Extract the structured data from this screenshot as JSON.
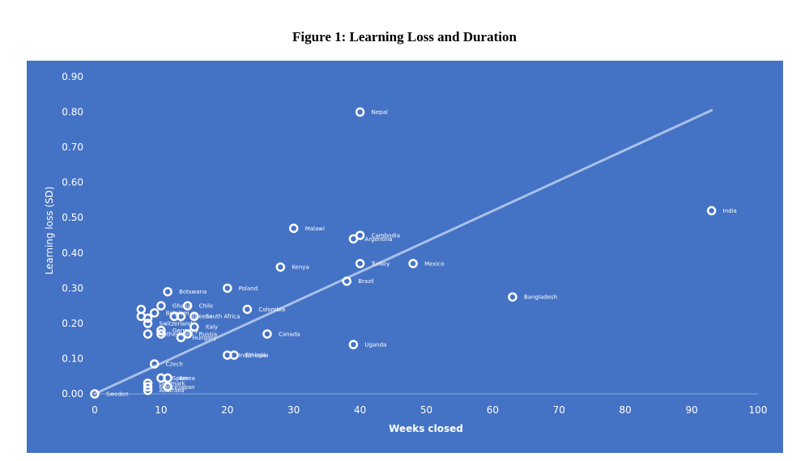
{
  "figure_title": "Figure 1: Learning Loss and Duration",
  "chart_data": {
    "type": "scatter",
    "xlabel": "Weeks closed",
    "ylabel": "Learning loss (SD)",
    "xlim": [
      0,
      100
    ],
    "ylim": [
      0,
      0.9
    ],
    "x_ticks": [
      "0",
      "10",
      "20",
      "30",
      "40",
      "50",
      "60",
      "70",
      "80",
      "90",
      "100"
    ],
    "y_ticks": [
      "0.00",
      "0.10",
      "0.20",
      "0.30",
      "0.40",
      "0.50",
      "0.60",
      "0.70",
      "0.80",
      "0.90"
    ],
    "grid": false,
    "legend": "none",
    "colors": {
      "background": "#4472C4",
      "marker": "#ffffff",
      "trendline": "#A9C0EA"
    },
    "trendline": {
      "x": [
        0,
        93
      ],
      "y": [
        0,
        0.805
      ]
    },
    "points": [
      {
        "label": "Nepal",
        "x": 40,
        "y": 0.8
      },
      {
        "label": "India",
        "x": 93,
        "y": 0.52
      },
      {
        "label": "Malawi",
        "x": 30,
        "y": 0.47
      },
      {
        "label": "Cambodia",
        "x": 40,
        "y": 0.45
      },
      {
        "label": "Argentina",
        "x": 39,
        "y": 0.44
      },
      {
        "label": "Kenya",
        "x": 28,
        "y": 0.36
      },
      {
        "label": "Turkey",
        "x": 40,
        "y": 0.37
      },
      {
        "label": "Mexico",
        "x": 48,
        "y": 0.37
      },
      {
        "label": "Brazil",
        "x": 38,
        "y": 0.32
      },
      {
        "label": "Poland",
        "x": 20,
        "y": 0.3
      },
      {
        "label": "Botswana",
        "x": 11,
        "y": 0.29
      },
      {
        "label": "Bangladesh",
        "x": 63,
        "y": 0.275
      },
      {
        "label": "Ghana",
        "x": 10,
        "y": 0.25
      },
      {
        "label": "Chile",
        "x": 14,
        "y": 0.25
      },
      {
        "label": "Colombia",
        "x": 23,
        "y": 0.24
      },
      {
        "label": "",
        "x": 7,
        "y": 0.24
      },
      {
        "label": "Belgium",
        "x": 9,
        "y": 0.23
      },
      {
        "label": "",
        "x": 7,
        "y": 0.22
      },
      {
        "label": "",
        "x": 8,
        "y": 0.215
      },
      {
        "label": "",
        "x": 12,
        "y": 0.22
      },
      {
        "label": "Greece",
        "x": 13,
        "y": 0.22
      },
      {
        "label": "South Africa",
        "x": 15,
        "y": 0.22
      },
      {
        "label": "Switzerland",
        "x": 8,
        "y": 0.2
      },
      {
        "label": "Italy",
        "x": 15,
        "y": 0.19
      },
      {
        "label": "Germany",
        "x": 10,
        "y": 0.18
      },
      {
        "label": "Netherlands",
        "x": 8,
        "y": 0.17
      },
      {
        "label": "",
        "x": 10,
        "y": 0.17
      },
      {
        "label": "Russia",
        "x": 14,
        "y": 0.17
      },
      {
        "label": "Hungary",
        "x": 13,
        "y": 0.16
      },
      {
        "label": "Canada",
        "x": 26,
        "y": 0.17
      },
      {
        "label": "Uganda",
        "x": 39,
        "y": 0.14
      },
      {
        "label": "Indonesia",
        "x": 20,
        "y": 0.11
      },
      {
        "label": "Ethiopia",
        "x": 21,
        "y": 0.11
      },
      {
        "label": "Czech",
        "x": 9,
        "y": 0.085
      },
      {
        "label": "Spain",
        "x": 10,
        "y": 0.045
      },
      {
        "label": "Korea",
        "x": 11,
        "y": 0.045
      },
      {
        "label": "Denmark",
        "x": 8,
        "y": 0.03
      },
      {
        "label": "France",
        "x": 8,
        "y": 0.02
      },
      {
        "label": "Japan",
        "x": 11,
        "y": 0.02
      },
      {
        "label": "Australia",
        "x": 8,
        "y": 0.01
      },
      {
        "label": "Sweden",
        "x": 0,
        "y": 0.0
      }
    ]
  }
}
